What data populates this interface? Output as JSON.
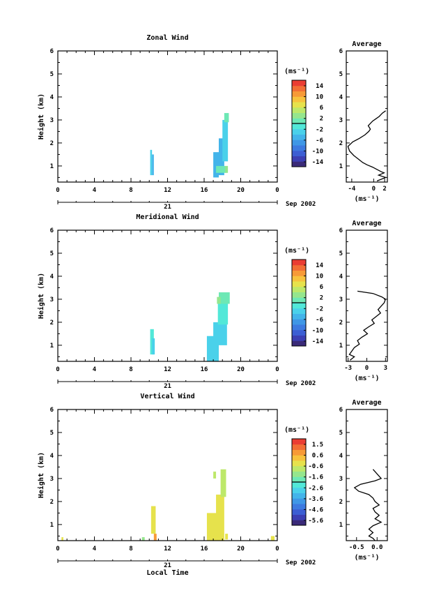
{
  "chart_data": [
    {
      "type": "heatmap",
      "title": "Zonal Wind",
      "ylabel": "Height (km)",
      "ylim": [
        0.3,
        6
      ],
      "yticks": [
        "6",
        "5",
        "4",
        "3",
        "2",
        "1"
      ],
      "xlim": [
        0,
        24
      ],
      "xticks": [
        "0",
        "4",
        "8",
        "12",
        "16",
        "20",
        "0"
      ],
      "date_day": "21",
      "date_label": "Sep 2002",
      "colorbar": {
        "unit": "(ms⁻¹)",
        "ticks": [
          "14",
          "10",
          "6",
          "2",
          "-2",
          "-6",
          "-10",
          "-14"
        ],
        "range": [
          -16,
          16
        ],
        "colors": [
          "#3a2a78",
          "#3c3fb3",
          "#3c5ed3",
          "#3d7ae0",
          "#3f97e6",
          "#43b4ea",
          "#4ad1ea",
          "#52e8d8",
          "#6de8b5",
          "#95e68d",
          "#bde86a",
          "#e6e24c",
          "#f7c23d",
          "#f79a37",
          "#f26e35",
          "#ea3d33"
        ]
      },
      "cells": [
        {
          "x0": 10.1,
          "x1": 10.3,
          "y0": 0.6,
          "y1": 1.7,
          "v": -4
        },
        {
          "x0": 10.3,
          "x1": 10.5,
          "y0": 0.6,
          "y1": 1.5,
          "v": -6
        },
        {
          "x0": 17.0,
          "x1": 17.6,
          "y0": 0.5,
          "y1": 1.6,
          "v": -5
        },
        {
          "x0": 17.6,
          "x1": 18.2,
          "y0": 0.6,
          "y1": 2.2,
          "v": -6
        },
        {
          "x0": 18.0,
          "x1": 18.6,
          "y0": 1.2,
          "y1": 3.0,
          "v": -4
        },
        {
          "x0": 18.2,
          "x1": 18.7,
          "y0": 2.9,
          "y1": 3.3,
          "v": 1
        },
        {
          "x0": 17.3,
          "x1": 18.4,
          "y0": 0.7,
          "y1": 1.0,
          "v": 1
        },
        {
          "x0": 18.3,
          "x1": 18.6,
          "y0": 0.7,
          "y1": 1.0,
          "v": 2
        }
      ],
      "average": {
        "title": "Average",
        "xlim": [
          -5,
          2.5
        ],
        "xticks": [
          "-4",
          "0",
          "2"
        ],
        "xlabel": "(ms⁻¹)",
        "x": [
          2.2,
          1.6,
          1.0,
          0.4,
          -0.2,
          -0.6,
          -1.0,
          -0.6,
          -0.9,
          -1.6,
          -2.6,
          -3.8,
          -4.7,
          -4.4,
          -3.6,
          -2.8,
          -2.0,
          -1.2,
          -0.2,
          0.6,
          1.4,
          1.9,
          0.9,
          2.2,
          0.6
        ],
        "y": [
          3.4,
          3.3,
          3.15,
          3.05,
          2.95,
          2.85,
          2.75,
          2.6,
          2.5,
          2.35,
          2.2,
          2.05,
          1.85,
          1.65,
          1.45,
          1.3,
          1.15,
          1.05,
          0.95,
          0.85,
          0.75,
          0.7,
          0.6,
          0.5,
          0.35
        ]
      }
    },
    {
      "type": "heatmap",
      "title": "Meridional Wind",
      "ylabel": "Height (km)",
      "ylim": [
        0.3,
        6
      ],
      "yticks": [
        "6",
        "5",
        "4",
        "3",
        "2",
        "1"
      ],
      "xlim": [
        0,
        24
      ],
      "xticks": [
        "0",
        "4",
        "8",
        "12",
        "16",
        "20",
        "0"
      ],
      "date_day": "21",
      "date_label": "Sep 2002",
      "colorbar": {
        "unit": "(ms⁻¹)",
        "ticks": [
          "14",
          "10",
          "6",
          "2",
          "-2",
          "-6",
          "-10",
          "-14"
        ],
        "range": [
          -16,
          16
        ],
        "colors": [
          "#3a2a78",
          "#3c3fb3",
          "#3c5ed3",
          "#3d7ae0",
          "#3f97e6",
          "#43b4ea",
          "#4ad1ea",
          "#52e8d8",
          "#6de8b5",
          "#95e68d",
          "#bde86a",
          "#e6e24c",
          "#f7c23d",
          "#f79a37",
          "#f26e35",
          "#ea3d33"
        ]
      },
      "cells": [
        {
          "x0": 10.1,
          "x1": 10.5,
          "y0": 0.6,
          "y1": 1.7,
          "v": -1
        },
        {
          "x0": 10.3,
          "x1": 10.6,
          "y0": 0.6,
          "y1": 1.3,
          "v": -3
        },
        {
          "x0": 16.3,
          "x1": 17.6,
          "y0": 0.3,
          "y1": 1.4,
          "v": -4
        },
        {
          "x0": 17.0,
          "x1": 18.5,
          "y0": 1.0,
          "y1": 2.0,
          "v": -3
        },
        {
          "x0": 17.5,
          "x1": 18.6,
          "y0": 1.9,
          "y1": 2.9,
          "v": -1
        },
        {
          "x0": 17.6,
          "x1": 18.8,
          "y0": 2.8,
          "y1": 3.3,
          "v": 1
        },
        {
          "x0": 17.4,
          "x1": 17.8,
          "y0": 2.8,
          "y1": 3.1,
          "v": 3
        }
      ],
      "average": {
        "title": "Average",
        "xlim": [
          -3.3,
          3.3
        ],
        "xticks": [
          "-3",
          "0",
          "3"
        ],
        "xlabel": "(ms⁻¹)",
        "x": [
          -1.5,
          1.0,
          2.4,
          3.0,
          2.8,
          2.3,
          1.8,
          2.2,
          1.5,
          0.8,
          1.2,
          0.3,
          -0.5,
          0.1,
          -0.8,
          -1.5,
          -1.2,
          -2.0,
          -2.4,
          -2.8,
          -2.0,
          -2.7
        ],
        "y": [
          3.35,
          3.25,
          3.1,
          3.0,
          2.85,
          2.7,
          2.55,
          2.4,
          2.25,
          2.1,
          1.95,
          1.8,
          1.65,
          1.5,
          1.35,
          1.2,
          1.05,
          0.9,
          0.75,
          0.6,
          0.5,
          0.35
        ]
      }
    },
    {
      "type": "heatmap",
      "title": "Vertical Wind",
      "ylabel": "Height (km)",
      "xlabel": "Local Time",
      "ylim": [
        0.3,
        6
      ],
      "yticks": [
        "6",
        "5",
        "4",
        "3",
        "2",
        "1"
      ],
      "xlim": [
        0,
        24
      ],
      "xticks": [
        "0",
        "4",
        "8",
        "12",
        "16",
        "20",
        "0"
      ],
      "date_day": "21",
      "date_label": "Sep 2002",
      "colorbar": {
        "unit": "(ms⁻¹)",
        "ticks": [
          "1.5",
          "0.6",
          "-0.6",
          "-1.6",
          "-2.6",
          "-3.6",
          "-4.6",
          "-5.6"
        ],
        "range": [
          -6,
          2
        ],
        "colors": [
          "#3a2a78",
          "#3c3fb3",
          "#3c5ed3",
          "#3d7ae0",
          "#3f97e6",
          "#43b4ea",
          "#4ad1ea",
          "#52e8d8",
          "#6de8b5",
          "#95e68d",
          "#bde86a",
          "#e6e24c",
          "#f7c23d",
          "#f79a37",
          "#f26e35",
          "#ea3d33"
        ]
      },
      "cells": [
        {
          "x0": 0.4,
          "x1": 0.6,
          "y0": 0.3,
          "y1": 0.45,
          "v": -0.4
        },
        {
          "x0": 9.2,
          "x1": 9.5,
          "y0": 0.3,
          "y1": 0.45,
          "v": -1.4
        },
        {
          "x0": 10.2,
          "x1": 10.7,
          "y0": 0.6,
          "y1": 1.8,
          "v": -0.5
        },
        {
          "x0": 10.5,
          "x1": 10.8,
          "y0": 0.3,
          "y1": 0.6,
          "v": 0.7
        },
        {
          "x0": 16.3,
          "x1": 17.4,
          "y0": 0.3,
          "y1": 1.5,
          "v": -0.4
        },
        {
          "x0": 17.3,
          "x1": 18.2,
          "y0": 0.3,
          "y1": 2.3,
          "v": -0.4
        },
        {
          "x0": 17.8,
          "x1": 18.4,
          "y0": 2.2,
          "y1": 3.4,
          "v": -0.6
        },
        {
          "x0": 17.0,
          "x1": 17.3,
          "y0": 3.0,
          "y1": 3.3,
          "v": -0.7
        },
        {
          "x0": 18.3,
          "x1": 18.6,
          "y0": 0.35,
          "y1": 0.6,
          "v": -0.5
        },
        {
          "x0": 23.3,
          "x1": 23.7,
          "y0": 0.3,
          "y1": 0.5,
          "v": -0.5
        }
      ],
      "average": {
        "title": "Average",
        "xlim": [
          -0.75,
          0.25
        ],
        "xticks": [
          "-0.5",
          "0.0"
        ],
        "xlabel": "(ms⁻¹)",
        "x": [
          -0.1,
          0.0,
          0.1,
          -0.05,
          -0.4,
          -0.55,
          -0.45,
          -0.2,
          -0.1,
          -0.05,
          0.05,
          -0.1,
          -0.05,
          0.05,
          -0.05,
          0.1,
          -0.1,
          -0.2,
          -0.1,
          -0.2,
          -0.1,
          -0.05
        ],
        "y": [
          3.4,
          3.2,
          3.0,
          2.9,
          2.75,
          2.6,
          2.45,
          2.3,
          2.15,
          2.0,
          1.85,
          1.7,
          1.55,
          1.4,
          1.25,
          1.1,
          0.95,
          0.8,
          0.65,
          0.5,
          0.4,
          0.3
        ]
      }
    }
  ]
}
